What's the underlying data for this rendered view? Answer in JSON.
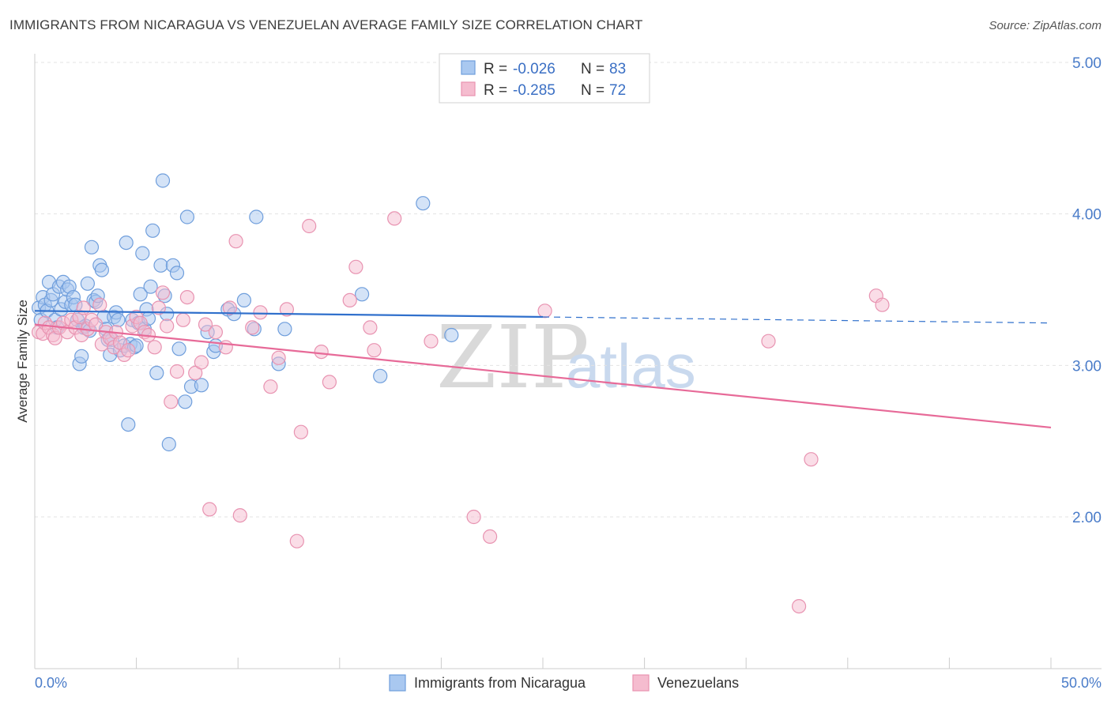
{
  "title": "IMMIGRANTS FROM NICARAGUA VS VENEZUELAN AVERAGE FAMILY SIZE CORRELATION CHART",
  "source": "Source: ZipAtlas.com",
  "watermark": {
    "left": "ZIP",
    "right": "atlas"
  },
  "stats": [
    {
      "r_label": "R = ",
      "r_value": "-0.026",
      "n_label": "N = ",
      "n_value": "83"
    },
    {
      "r_label": "R = ",
      "r_value": "-0.285",
      "n_label": "N = ",
      "n_value": "72"
    }
  ],
  "legend": [
    {
      "label": "Immigrants from Nicaragua"
    },
    {
      "label": "Venezuelans"
    }
  ],
  "colors": {
    "blue_fill": "#a9c8f0",
    "blue_stroke": "#6f9edc",
    "blue_line": "#3070cc",
    "pink_fill": "#f5bccf",
    "pink_stroke": "#e893b1",
    "pink_line": "#e76a98",
    "axis_text": "#4a7cc9",
    "grid": "#e3e3e3"
  },
  "chart_data": {
    "type": "scatter",
    "title": "IMMIGRANTS FROM NICARAGUA VS VENEZUELAN AVERAGE FAMILY SIZE CORRELATION CHART",
    "xlabel": "",
    "ylabel": "Average Family Size",
    "xlim": [
      0,
      50
    ],
    "ylim": [
      1.0,
      5.1
    ],
    "x_tick_labels": [
      "0.0%",
      "50.0%"
    ],
    "y_ticks": [
      2.0,
      3.0,
      4.0,
      5.0
    ],
    "y_tick_labels": [
      "2.00",
      "3.00",
      "4.00",
      "5.00"
    ],
    "grid": true,
    "legend_position": "bottom",
    "series": [
      {
        "name": "Immigrants from Nicaragua",
        "points": [
          [
            0.2,
            3.38
          ],
          [
            0.3,
            3.3
          ],
          [
            0.4,
            3.45
          ],
          [
            0.5,
            3.4
          ],
          [
            0.6,
            3.36
          ],
          [
            0.7,
            3.55
          ],
          [
            0.8,
            3.43
          ],
          [
            0.9,
            3.47
          ],
          [
            1.0,
            3.3
          ],
          [
            1.1,
            3.25
          ],
          [
            1.2,
            3.52
          ],
          [
            1.3,
            3.37
          ],
          [
            1.4,
            3.55
          ],
          [
            1.5,
            3.42
          ],
          [
            1.6,
            3.5
          ],
          [
            1.7,
            3.52
          ],
          [
            1.8,
            3.4
          ],
          [
            1.9,
            3.45
          ],
          [
            2.0,
            3.4
          ],
          [
            2.1,
            3.3
          ],
          [
            2.2,
            3.01
          ],
          [
            2.3,
            3.06
          ],
          [
            2.4,
            3.25
          ],
          [
            2.5,
            3.26
          ],
          [
            2.6,
            3.54
          ],
          [
            2.7,
            3.23
          ],
          [
            2.8,
            3.78
          ],
          [
            2.9,
            3.43
          ],
          [
            3.0,
            3.42
          ],
          [
            3.1,
            3.46
          ],
          [
            3.2,
            3.66
          ],
          [
            3.3,
            3.63
          ],
          [
            3.4,
            3.32
          ],
          [
            3.5,
            3.24
          ],
          [
            3.6,
            3.17
          ],
          [
            3.7,
            3.07
          ],
          [
            3.8,
            3.17
          ],
          [
            3.9,
            3.32
          ],
          [
            4.0,
            3.35
          ],
          [
            4.1,
            3.3
          ],
          [
            4.2,
            3.1
          ],
          [
            4.4,
            3.13
          ],
          [
            4.5,
            3.81
          ],
          [
            4.6,
            2.61
          ],
          [
            4.7,
            3.14
          ],
          [
            4.8,
            3.3
          ],
          [
            4.9,
            3.12
          ],
          [
            5.0,
            3.13
          ],
          [
            5.1,
            3.28
          ],
          [
            5.2,
            3.47
          ],
          [
            5.3,
            3.74
          ],
          [
            5.4,
            3.24
          ],
          [
            5.5,
            3.37
          ],
          [
            5.6,
            3.31
          ],
          [
            5.7,
            3.52
          ],
          [
            5.8,
            3.89
          ],
          [
            6.0,
            2.95
          ],
          [
            6.2,
            3.66
          ],
          [
            6.3,
            4.22
          ],
          [
            6.4,
            3.46
          ],
          [
            6.5,
            3.34
          ],
          [
            6.6,
            2.48
          ],
          [
            6.8,
            3.66
          ],
          [
            7.0,
            3.61
          ],
          [
            7.1,
            3.11
          ],
          [
            7.4,
            2.76
          ],
          [
            7.5,
            3.98
          ],
          [
            7.7,
            2.86
          ],
          [
            8.2,
            2.87
          ],
          [
            8.5,
            3.22
          ],
          [
            8.8,
            3.09
          ],
          [
            8.9,
            3.13
          ],
          [
            9.5,
            3.37
          ],
          [
            9.8,
            3.34
          ],
          [
            10.3,
            3.43
          ],
          [
            10.8,
            3.24
          ],
          [
            10.9,
            3.98
          ],
          [
            12.0,
            3.01
          ],
          [
            12.3,
            3.24
          ],
          [
            16.1,
            3.47
          ],
          [
            17.0,
            2.93
          ],
          [
            19.1,
            4.07
          ],
          [
            20.5,
            3.2
          ]
        ]
      },
      {
        "name": "Venezuelans",
        "points": [
          [
            0.2,
            3.22
          ],
          [
            0.4,
            3.21
          ],
          [
            0.5,
            3.28
          ],
          [
            0.7,
            3.25
          ],
          [
            0.9,
            3.2
          ],
          [
            1.0,
            3.18
          ],
          [
            1.2,
            3.25
          ],
          [
            1.4,
            3.28
          ],
          [
            1.6,
            3.22
          ],
          [
            1.8,
            3.3
          ],
          [
            2.0,
            3.25
          ],
          [
            2.2,
            3.32
          ],
          [
            2.3,
            3.2
          ],
          [
            2.4,
            3.38
          ],
          [
            2.6,
            3.24
          ],
          [
            2.8,
            3.3
          ],
          [
            3.0,
            3.27
          ],
          [
            3.2,
            3.4
          ],
          [
            3.3,
            3.14
          ],
          [
            3.5,
            3.22
          ],
          [
            3.7,
            3.18
          ],
          [
            3.9,
            3.12
          ],
          [
            4.0,
            3.22
          ],
          [
            4.2,
            3.15
          ],
          [
            4.4,
            3.07
          ],
          [
            4.6,
            3.1
          ],
          [
            4.8,
            3.26
          ],
          [
            5.0,
            3.32
          ],
          [
            5.2,
            3.28
          ],
          [
            5.4,
            3.22
          ],
          [
            5.6,
            3.2
          ],
          [
            5.9,
            3.12
          ],
          [
            6.1,
            3.38
          ],
          [
            6.3,
            3.48
          ],
          [
            6.5,
            3.26
          ],
          [
            6.7,
            2.76
          ],
          [
            7.0,
            2.96
          ],
          [
            7.3,
            3.3
          ],
          [
            7.5,
            3.45
          ],
          [
            7.9,
            2.95
          ],
          [
            8.2,
            3.02
          ],
          [
            8.4,
            3.27
          ],
          [
            8.6,
            2.05
          ],
          [
            8.9,
            3.22
          ],
          [
            9.4,
            3.12
          ],
          [
            9.6,
            3.38
          ],
          [
            9.9,
            3.82
          ],
          [
            10.1,
            2.01
          ],
          [
            10.7,
            3.25
          ],
          [
            11.1,
            3.35
          ],
          [
            11.6,
            2.86
          ],
          [
            12.0,
            3.05
          ],
          [
            12.4,
            3.37
          ],
          [
            12.9,
            1.84
          ],
          [
            13.1,
            2.56
          ],
          [
            13.5,
            3.92
          ],
          [
            14.1,
            3.09
          ],
          [
            14.5,
            2.89
          ],
          [
            15.5,
            3.43
          ],
          [
            15.8,
            3.65
          ],
          [
            16.5,
            3.25
          ],
          [
            16.7,
            3.1
          ],
          [
            17.7,
            3.97
          ],
          [
            19.5,
            3.16
          ],
          [
            21.6,
            2.0
          ],
          [
            22.4,
            1.87
          ],
          [
            25.1,
            3.36
          ],
          [
            36.1,
            3.16
          ],
          [
            37.6,
            1.41
          ],
          [
            38.2,
            2.38
          ],
          [
            41.4,
            3.46
          ],
          [
            41.7,
            3.4
          ]
        ]
      }
    ],
    "trend_lines": [
      {
        "series": "Immigrants from Nicaragua",
        "solid": [
          [
            0,
            3.36
          ],
          [
            25,
            3.32
          ]
        ],
        "dashed": [
          [
            25,
            3.32
          ],
          [
            50,
            3.28
          ]
        ]
      },
      {
        "series": "Venezuelans",
        "solid": [
          [
            0,
            3.27
          ],
          [
            50,
            2.59
          ]
        ]
      }
    ]
  }
}
